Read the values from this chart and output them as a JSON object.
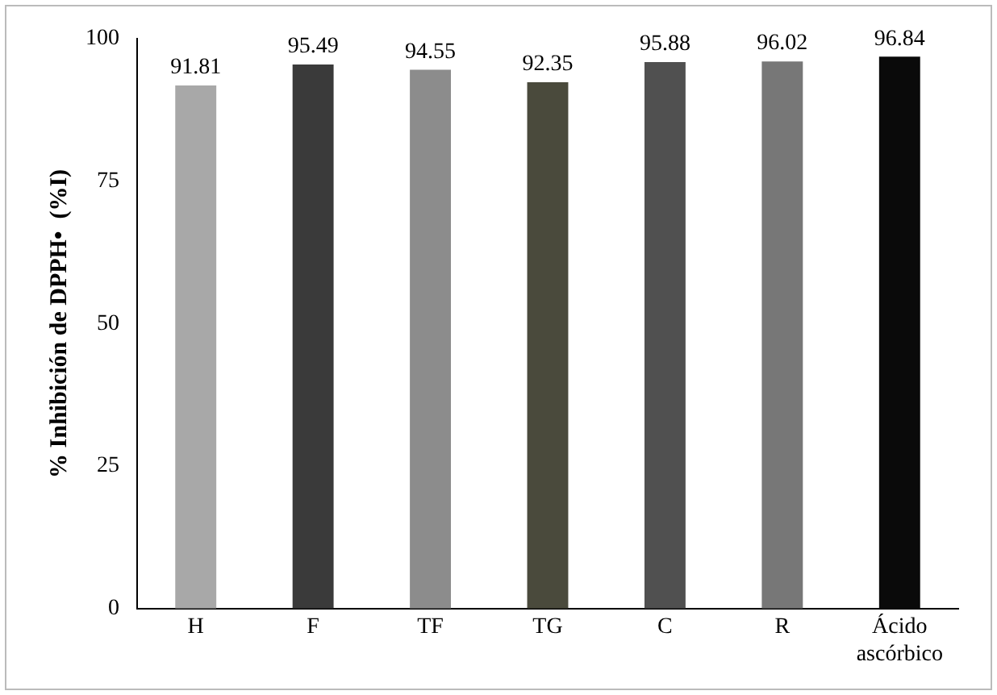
{
  "chart_data": {
    "type": "bar",
    "ylabel": "% Inhibición de DPPH•  (%I)",
    "categories": [
      "H",
      "F",
      "TF",
      "TG",
      "C",
      "R",
      "Ácido ascórbico"
    ],
    "values": [
      91.81,
      95.49,
      94.55,
      92.35,
      95.88,
      96.02,
      96.84
    ],
    "colors": [
      "#a8a8a8",
      "#3a3a3a",
      "#8c8c8c",
      "#4a4a3c",
      "#505050",
      "#777777",
      "#0a0a0a"
    ],
    "ylim": [
      0,
      100
    ],
    "yticks": [
      0,
      25,
      50,
      75,
      100
    ],
    "grid": false,
    "legend": false,
    "data_labels": true
  }
}
